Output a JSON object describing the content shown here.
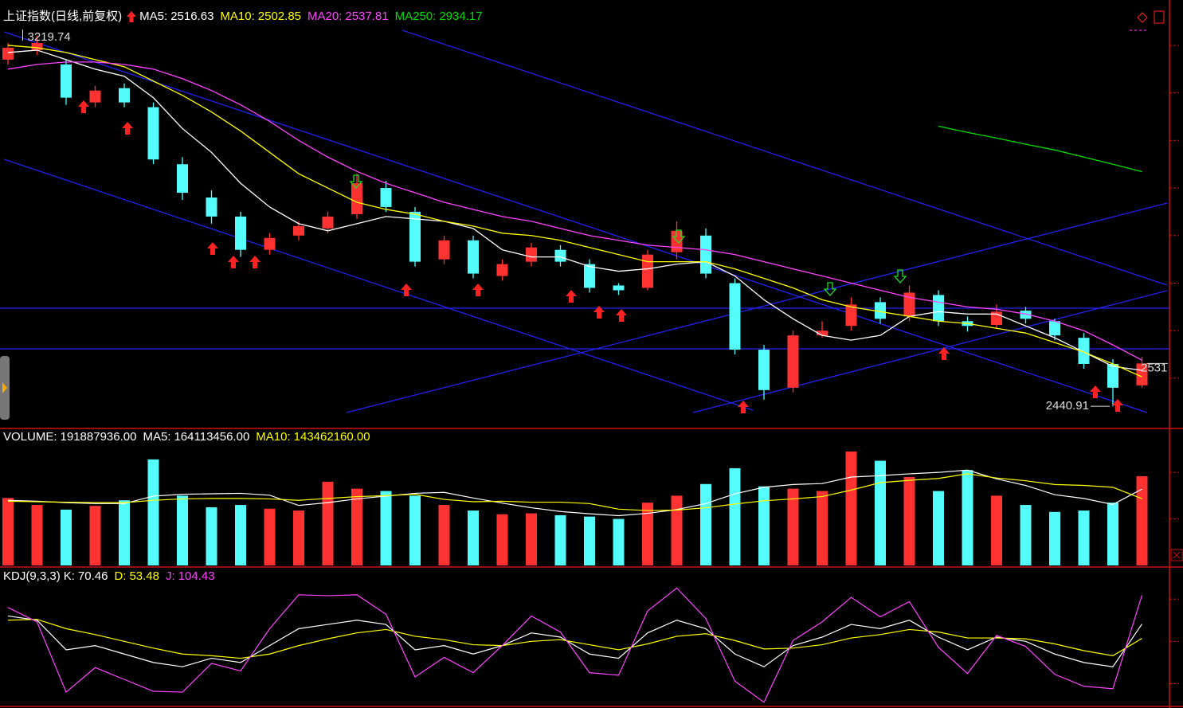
{
  "chart_data": [
    {
      "type": "candlestick",
      "title": "上证指数(日线,前复权)",
      "open": [
        3170,
        3190,
        3160,
        3080,
        3110,
        3070,
        2950,
        2880,
        2840,
        2770,
        2800,
        2815,
        2845,
        2900,
        2850,
        2750,
        2790,
        2715,
        2745,
        2770,
        2740,
        2695,
        2690,
        2765,
        2800,
        2700,
        2560,
        2480,
        2590,
        2610,
        2660,
        2630,
        2675,
        2620,
        2612,
        2642,
        2620,
        2585,
        2530,
        2485
      ],
      "high": [
        3205,
        3219.74,
        3170,
        3115,
        3120,
        3080,
        2965,
        2895,
        2850,
        2805,
        2830,
        2850,
        2930,
        2915,
        2860,
        2800,
        2800,
        2750,
        2785,
        2780,
        2750,
        2700,
        2770,
        2830,
        2815,
        2710,
        2570,
        2600,
        2620,
        2670,
        2670,
        2695,
        2685,
        2630,
        2655,
        2650,
        2625,
        2595,
        2540,
        2545
      ],
      "low": [
        3160,
        3180,
        3075,
        3070,
        3070,
        2950,
        2875,
        2825,
        2755,
        2760,
        2790,
        2805,
        2835,
        2850,
        2735,
        2740,
        2710,
        2705,
        2735,
        2735,
        2680,
        2675,
        2685,
        2750,
        2710,
        2550,
        2455,
        2470,
        2585,
        2600,
        2615,
        2620,
        2610,
        2598,
        2605,
        2615,
        2580,
        2520,
        2440.91,
        2480
      ],
      "close": [
        3195,
        3205,
        3090,
        3105,
        3080,
        2960,
        2890,
        2840,
        2770,
        2795,
        2820,
        2840,
        2910,
        2860,
        2745,
        2790,
        2720,
        2740,
        2775,
        2745,
        2690,
        2685,
        2760,
        2810,
        2720,
        2560,
        2475,
        2590,
        2600,
        2655,
        2625,
        2680,
        2620,
        2610,
        2640,
        2625,
        2590,
        2530,
        2480,
        2531
      ],
      "up_color": "#ff3232",
      "down_color": "#54fcfc",
      "series": [
        {
          "name": "MA5:",
          "color": "#ffffff",
          "values": [
            3185,
            3190,
            3170,
            3150,
            3135,
            3090,
            3025,
            2975,
            2910,
            2860,
            2825,
            2810,
            2825,
            2840,
            2835,
            2830,
            2815,
            2770,
            2755,
            2755,
            2735,
            2725,
            2730,
            2740,
            2745,
            2715,
            2665,
            2625,
            2590,
            2580,
            2590,
            2630,
            2640,
            2635,
            2635,
            2610,
            2585,
            2555,
            2525,
            2516.63
          ]
        },
        {
          "name": "MA10:",
          "color": "#ffff00",
          "values": [
            3200,
            3195,
            3185,
            3170,
            3155,
            3125,
            3095,
            3060,
            3020,
            2975,
            2930,
            2900,
            2870,
            2855,
            2845,
            2830,
            2820,
            2805,
            2800,
            2790,
            2775,
            2760,
            2745,
            2745,
            2745,
            2730,
            2710,
            2690,
            2665,
            2650,
            2640,
            2630,
            2620,
            2615,
            2605,
            2595,
            2575,
            2555,
            2530,
            2502.85
          ]
        },
        {
          "name": "MA20:",
          "color": "#ff44ff",
          "values": [
            3150,
            3160,
            3165,
            3165,
            3160,
            3150,
            3130,
            3105,
            3075,
            3040,
            3000,
            2965,
            2935,
            2910,
            2890,
            2870,
            2855,
            2840,
            2830,
            2815,
            2800,
            2790,
            2780,
            2775,
            2770,
            2760,
            2745,
            2730,
            2715,
            2700,
            2685,
            2670,
            2660,
            2650,
            2645,
            2635,
            2620,
            2600,
            2570,
            2537.81
          ]
        },
        {
          "name": "MA250:",
          "color": "#00dd00",
          "values": [
            null,
            null,
            null,
            null,
            null,
            null,
            null,
            null,
            null,
            null,
            null,
            null,
            null,
            null,
            null,
            null,
            null,
            null,
            null,
            null,
            null,
            null,
            null,
            null,
            null,
            null,
            null,
            null,
            null,
            null,
            null,
            null,
            3030,
            3017,
            3005,
            2992,
            2980,
            2965,
            2950,
            2934.17
          ]
        }
      ],
      "ylim": [
        2396,
        3282
      ],
      "yticks": [
        2500,
        2600,
        2700,
        2800,
        2900,
        3000,
        3100,
        3200
      ],
      "grid": false
    },
    {
      "type": "bar",
      "series": [
        {
          "name": "VOLUME:",
          "legend_label": "191887936.00",
          "values": [
            145000000,
            130000000,
            120000000,
            128000000,
            140000000,
            228000000,
            150000000,
            125000000,
            130000000,
            122000000,
            118000000,
            180000000,
            165000000,
            160000000,
            150000000,
            130000000,
            118000000,
            110000000,
            112000000,
            108000000,
            105000000,
            100000000,
            135000000,
            150000000,
            175000000,
            209000000,
            170000000,
            165000000,
            160000000,
            245000000,
            225000000,
            190000000,
            160000000,
            205000000,
            150000000,
            130000000,
            115000000,
            118000000,
            135000000,
            191887936
          ]
        },
        {
          "name": "MA5:",
          "color": "#ffffff",
          "legend_label": "164113456.00",
          "values": [
            140000000,
            138000000,
            135000000,
            133000000,
            133000000,
            149000000,
            153000000,
            154000000,
            155000000,
            151000000,
            129000000,
            135000000,
            143000000,
            149000000,
            155000000,
            157000000,
            145000000,
            134000000,
            124000000,
            116000000,
            111000000,
            107000000,
            112000000,
            120000000,
            133000000,
            154000000,
            168000000,
            174000000,
            176000000,
            190000000,
            193000000,
            197000000,
            200000000,
            205000000,
            186000000,
            172000000,
            152000000,
            144000000,
            131000000,
            164113456
          ]
        },
        {
          "name": "MA10:",
          "color": "#ffff00",
          "legend_label": "143462160.00",
          "values": [
            138000000,
            137000000,
            136000000,
            135000000,
            135000000,
            140000000,
            143000000,
            144000000,
            144000000,
            143000000,
            140000000,
            144000000,
            148000000,
            150000000,
            153000000,
            142000000,
            137000000,
            138000000,
            136000000,
            136000000,
            133000000,
            121000000,
            118000000,
            119000000,
            124000000,
            132000000,
            139000000,
            143000000,
            148000000,
            162000000,
            178000000,
            183000000,
            187000000,
            197000000,
            188000000,
            182000000,
            174000000,
            172000000,
            168000000,
            143462160
          ]
        }
      ],
      "ylim": [
        0,
        291000000
      ],
      "yticks": [
        100000000,
        200000000
      ]
    },
    {
      "type": "line",
      "title": "KDJ(9,3,3)",
      "series": [
        {
          "name": "K:",
          "color": "#ffffff",
          "values": [
            80,
            75,
            40,
            45,
            35,
            25,
            20,
            30,
            25,
            45,
            65,
            70,
            75,
            70,
            40,
            45,
            35,
            45,
            60,
            55,
            35,
            30,
            60,
            75,
            65,
            35,
            20,
            45,
            55,
            70,
            65,
            75,
            55,
            40,
            55,
            50,
            35,
            25,
            20,
            70.46
          ]
        },
        {
          "name": "D:",
          "color": "#ffff00",
          "values": [
            75,
            76,
            65,
            58,
            50,
            42,
            35,
            33,
            30,
            35,
            45,
            53,
            60,
            64,
            56,
            52,
            46,
            45,
            50,
            52,
            46,
            40,
            47,
            56,
            59,
            51,
            41,
            42,
            46,
            54,
            58,
            64,
            61,
            54,
            54,
            53,
            47,
            39,
            33,
            53.48
          ]
        },
        {
          "name": "J:",
          "color": "#ff44ff",
          "values": [
            90,
            73,
            -10,
            19,
            5,
            -9,
            -10,
            24,
            15,
            65,
            105,
            104,
            105,
            82,
            8,
            31,
            13,
            45,
            80,
            61,
            13,
            10,
            86,
            113,
            77,
            3,
            -22,
            51,
            73,
            102,
            79,
            97,
            43,
            12,
            57,
            44,
            11,
            -3,
            -6,
            104.43
          ]
        }
      ],
      "ylim": [
        -25,
        135
      ],
      "yticks": [
        0,
        50,
        100
      ]
    }
  ]
}
